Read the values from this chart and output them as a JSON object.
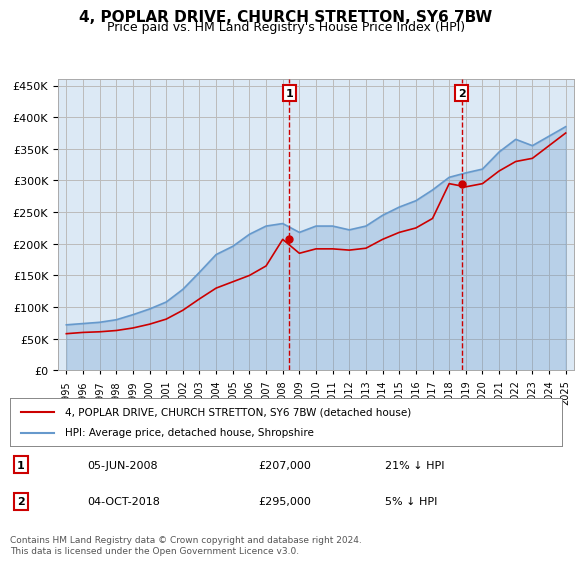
{
  "title": "4, POPLAR DRIVE, CHURCH STRETTON, SY6 7BW",
  "subtitle": "Price paid vs. HM Land Registry's House Price Index (HPI)",
  "background_color": "#dce9f5",
  "plot_bg_color": "#dce9f5",
  "legend_label_red": "4, POPLAR DRIVE, CHURCH STRETTON, SY6 7BW (detached house)",
  "legend_label_blue": "HPI: Average price, detached house, Shropshire",
  "footnote": "Contains HM Land Registry data © Crown copyright and database right 2024.\nThis data is licensed under the Open Government Licence v3.0.",
  "marker1_date": "05-JUN-2008",
  "marker1_price": 207000,
  "marker1_hpi_diff": "21% ↓ HPI",
  "marker2_date": "04-OCT-2018",
  "marker2_price": 295000,
  "marker2_hpi_diff": "5% ↓ HPI",
  "ylim": [
    0,
    460000
  ],
  "yticks": [
    0,
    50000,
    100000,
    150000,
    200000,
    250000,
    300000,
    350000,
    400000,
    450000
  ],
  "red_color": "#cc0000",
  "blue_color": "#6699cc",
  "marker_box_color": "#cc0000",
  "grid_color": "#bbbbbb",
  "hpi_years": [
    1995,
    1996,
    1997,
    1998,
    1999,
    2000,
    2001,
    2002,
    2003,
    2004,
    2005,
    2006,
    2007,
    2008,
    2009,
    2010,
    2011,
    2012,
    2013,
    2014,
    2015,
    2016,
    2017,
    2018,
    2019,
    2020,
    2021,
    2022,
    2023,
    2024,
    2025
  ],
  "hpi_values": [
    72000,
    74000,
    76000,
    80000,
    88000,
    97000,
    108000,
    128000,
    155000,
    183000,
    196000,
    215000,
    228000,
    232000,
    218000,
    228000,
    228000,
    222000,
    228000,
    245000,
    258000,
    268000,
    285000,
    305000,
    312000,
    318000,
    345000,
    365000,
    355000,
    370000,
    385000
  ],
  "red_years": [
    1995,
    1996,
    1997,
    1998,
    1999,
    2000,
    2001,
    2002,
    2003,
    2004,
    2005,
    2006,
    2007,
    2008,
    2009,
    2010,
    2011,
    2012,
    2013,
    2014,
    2015,
    2016,
    2017,
    2018,
    2019,
    2020,
    2021,
    2022,
    2023,
    2024,
    2025
  ],
  "red_values": [
    58000,
    60000,
    61000,
    63000,
    67000,
    73000,
    81000,
    95000,
    113000,
    130000,
    140000,
    150000,
    165000,
    207000,
    185000,
    192000,
    192000,
    190000,
    193000,
    207000,
    218000,
    225000,
    240000,
    295000,
    290000,
    295000,
    315000,
    330000,
    335000,
    355000,
    375000
  ],
  "marker1_x": 2008.4,
  "marker2_x": 2018.75
}
